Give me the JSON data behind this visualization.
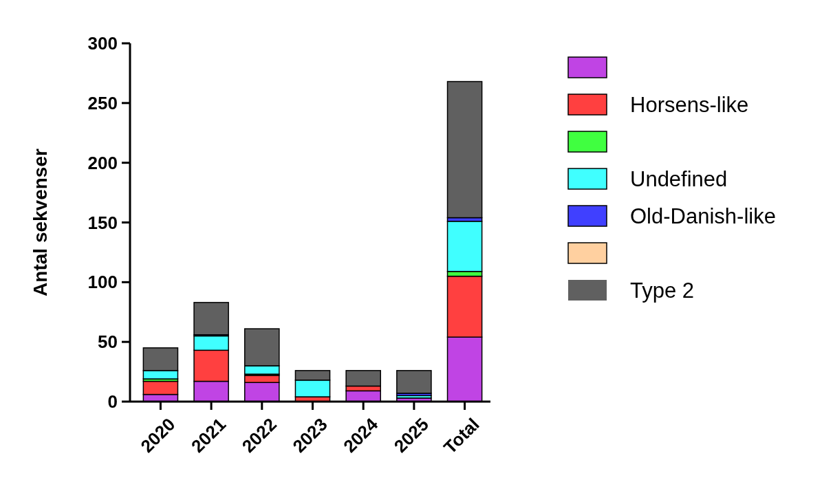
{
  "chart_data": {
    "type": "bar",
    "stacked": true,
    "ylabel": "Antal sekvenser",
    "legend": "right",
    "categories": [
      "2020",
      "2021",
      "2022",
      "2023",
      "2024",
      "2025",
      "Total"
    ],
    "ylim": [
      0,
      300
    ],
    "yticks": [
      0,
      50,
      100,
      150,
      200,
      250,
      300
    ],
    "series": [
      {
        "color": "#c044e4",
        "values": [
          6,
          17,
          16,
          0,
          9,
          3,
          54
        ]
      },
      {
        "name": "Horsens-like",
        "color": "#ff4040",
        "values": [
          11,
          26,
          6,
          4,
          4,
          0,
          51
        ]
      },
      {
        "color": "#40ff40",
        "values": [
          2,
          0,
          1,
          0,
          0,
          0,
          4
        ]
      },
      {
        "name": "Undefined",
        "color": "#40ffff",
        "values": [
          7,
          12,
          7,
          14,
          0,
          2,
          42
        ]
      },
      {
        "name": "Old-Danish-like",
        "color": "#4040ff",
        "values": [
          0,
          1,
          0,
          0,
          0,
          2,
          3
        ]
      },
      {
        "color": "#ffd0a0",
        "values": [
          0,
          0,
          0,
          0,
          0,
          0,
          0
        ]
      },
      {
        "name": "Type 2",
        "color": "#606060",
        "values": [
          19,
          27,
          31,
          8,
          13,
          19,
          114
        ]
      }
    ]
  }
}
